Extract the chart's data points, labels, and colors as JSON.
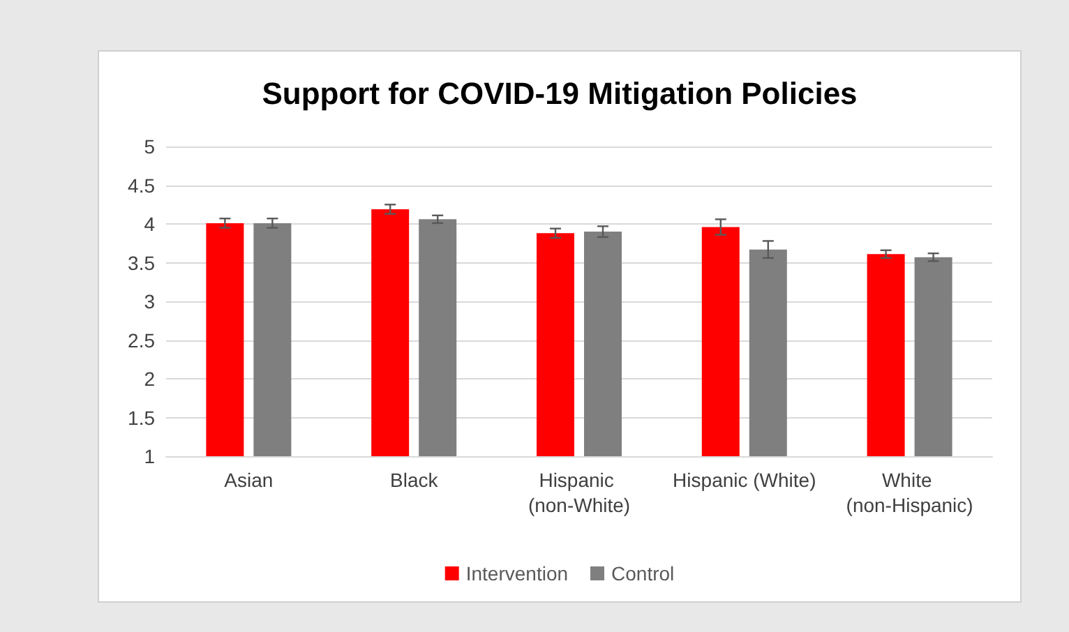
{
  "chart_data": {
    "type": "bar",
    "title": "Support for COVID-19 Mitigation Policies",
    "categories": [
      "Asian",
      "Black",
      "Hispanic (non-White)",
      "Hispanic (White)",
      "White (non-Hispanic)"
    ],
    "series": [
      {
        "name": "Intervention",
        "color": "#ff0000",
        "values": [
          4.01,
          4.19,
          3.88,
          3.96,
          3.61
        ],
        "errors": [
          0.06,
          0.06,
          0.06,
          0.1,
          0.05
        ]
      },
      {
        "name": "Control",
        "color": "#7f7f7f",
        "values": [
          4.01,
          4.06,
          3.9,
          3.67,
          3.57
        ],
        "errors": [
          0.06,
          0.05,
          0.07,
          0.11,
          0.05
        ]
      }
    ],
    "ylim": [
      1,
      5
    ],
    "yticks": [
      1,
      1.5,
      2,
      2.5,
      3,
      3.5,
      4,
      4.5,
      5
    ],
    "grid": "y",
    "legend": "bottom"
  }
}
